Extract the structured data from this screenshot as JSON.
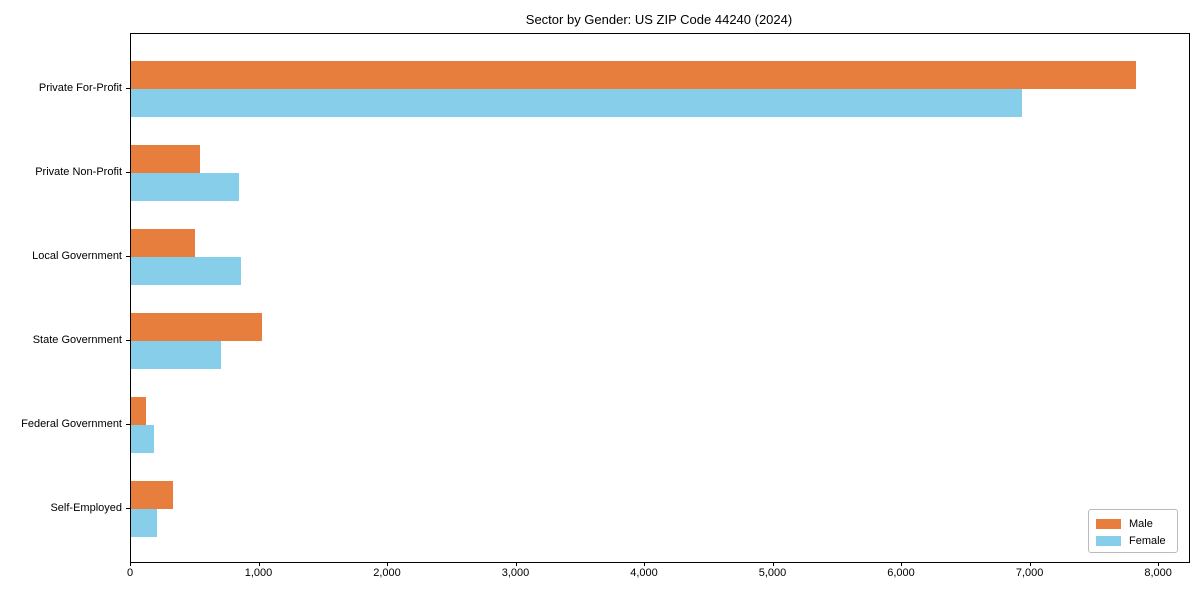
{
  "chart_data": {
    "type": "bar",
    "orientation": "horizontal",
    "title": "Sector by Gender: US ZIP Code 44240 (2024)",
    "categories": [
      "Private For-Profit",
      "Private Non-Profit",
      "Local Government",
      "State Government",
      "Federal Government",
      "Self-Employed"
    ],
    "series": [
      {
        "name": "Male",
        "color": "#e87e3d",
        "values": [
          7820,
          535,
          500,
          1020,
          115,
          325
        ]
      },
      {
        "name": "Female",
        "color": "#87ceeb",
        "values": [
          6930,
          840,
          855,
          700,
          175,
          205
        ]
      }
    ],
    "xlim": [
      0,
      8233
    ],
    "x_ticks": [
      0,
      1000,
      2000,
      3000,
      4000,
      5000,
      6000,
      7000,
      8000
    ],
    "x_tick_labels": [
      "0",
      "1,000",
      "2,000",
      "3,000",
      "4,000",
      "5,000",
      "6,000",
      "7,000",
      "8,000"
    ],
    "xlabel": "",
    "ylabel": "",
    "grid": false,
    "legend_position": "lower right"
  }
}
